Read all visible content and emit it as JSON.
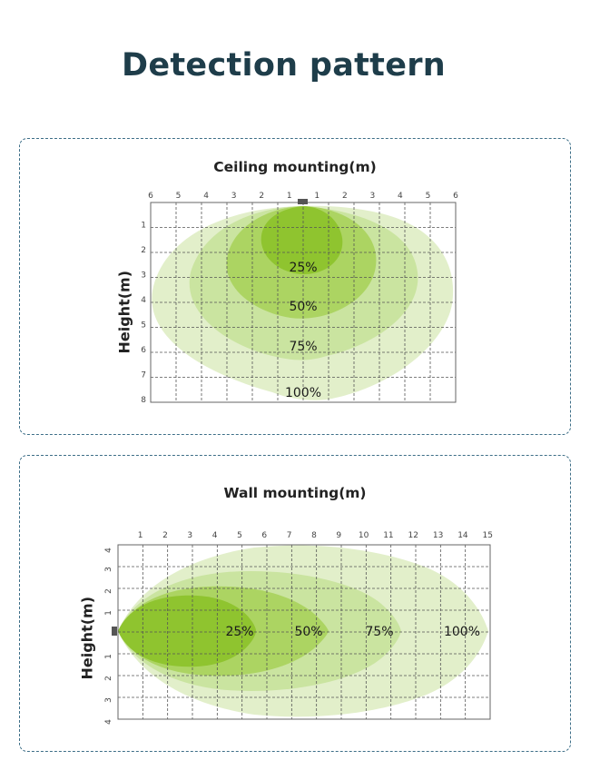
{
  "page_title": "Detection pattern",
  "ceiling": {
    "title": "Ceiling mounting(m)",
    "y_axis_label": "Height(m)",
    "x_ticks": [
      "6",
      "5",
      "4",
      "3",
      "2",
      "1",
      "1",
      "2",
      "3",
      "4",
      "5",
      "6"
    ],
    "y_ticks": [
      "1",
      "2",
      "3",
      "4",
      "5",
      "6",
      "7",
      "8"
    ],
    "zones": [
      "25%",
      "50%",
      "75%",
      "100%"
    ]
  },
  "wall": {
    "title": "Wall mounting(m)",
    "y_axis_label": "Height(m)",
    "x_ticks": [
      "1",
      "2",
      "3",
      "4",
      "5",
      "6",
      "7",
      "8",
      "9",
      "10",
      "11",
      "12",
      "13",
      "14",
      "15"
    ],
    "y_ticks": [
      "4",
      "3",
      "2",
      "1",
      "1",
      "2",
      "3",
      "4"
    ],
    "zones": [
      "25%",
      "50%",
      "75%",
      "100%"
    ]
  },
  "colors": {
    "title": "#1e3d4a",
    "border": "#3d6e87",
    "zone_100": "#dfeec6",
    "zone_75": "#c8e39c",
    "zone_50": "#a9d35c",
    "zone_25": "#8cc22a",
    "sensor": "#555555"
  }
}
